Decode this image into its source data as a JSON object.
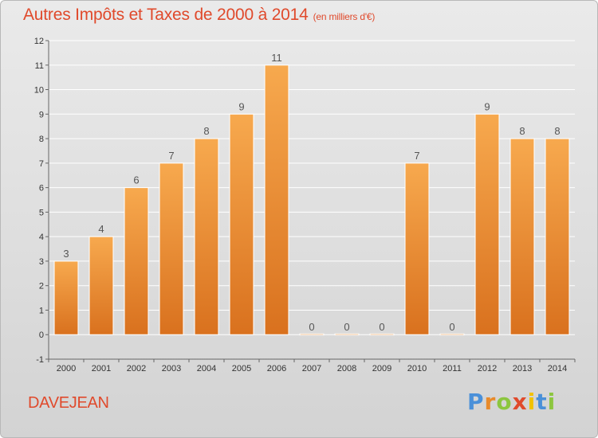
{
  "header": {
    "title": "Autres Impôts et Taxes de 2000 à 2014",
    "unit": "(en milliers d'€)"
  },
  "footer": {
    "commune": "DAVEJEAN",
    "logo_letters": [
      "P",
      "r",
      "o",
      "x",
      "i",
      "t",
      "i"
    ],
    "logo_colors": [
      "#4a90d9",
      "#e88a2a",
      "#8cc63f",
      "#e04a2c",
      "#f2c200",
      "#4a90d9",
      "#8cc63f"
    ]
  },
  "colors": {
    "bar_top": "#f7a94e",
    "bar_bottom": "#d9711e",
    "grid": "#ffffff",
    "title": "#e04a2c"
  },
  "chart_data": {
    "type": "bar",
    "categories": [
      "2000",
      "2001",
      "2002",
      "2003",
      "2004",
      "2005",
      "2006",
      "2007",
      "2008",
      "2009",
      "2010",
      "2011",
      "2012",
      "2013",
      "2014"
    ],
    "values": [
      3,
      4,
      6,
      7,
      8,
      9,
      11,
      0,
      0,
      0,
      7,
      0,
      9,
      8,
      8
    ],
    "data_labels": [
      "3",
      "4",
      "6",
      "7",
      "8",
      "9",
      "11",
      "0",
      "0",
      "0",
      "7",
      "0",
      "9",
      "8",
      "8"
    ],
    "yticks": [
      "-1",
      "0",
      "1",
      "2",
      "3",
      "4",
      "5",
      "6",
      "7",
      "8",
      "9",
      "10",
      "11",
      "12"
    ],
    "title": "Autres Impôts et Taxes de 2000 à 2014",
    "xlabel": "",
    "ylabel": "",
    "ylim": [
      -1,
      12
    ],
    "grid": true
  }
}
